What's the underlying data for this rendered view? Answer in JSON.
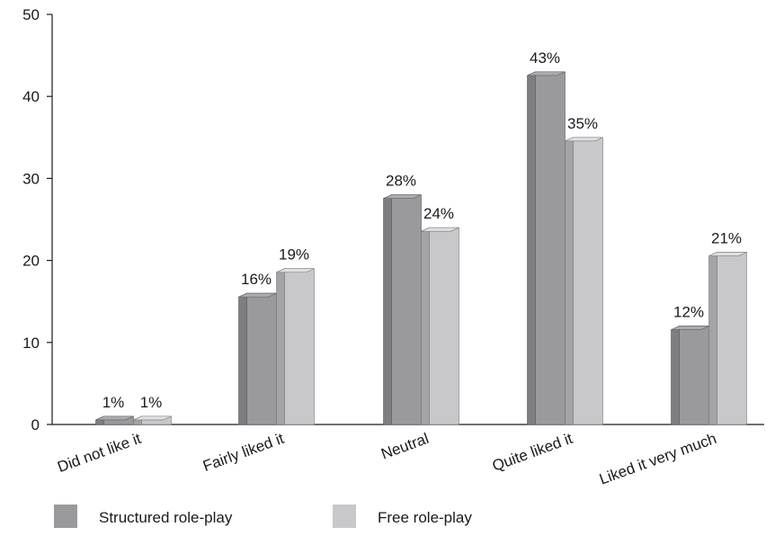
{
  "chart_data": {
    "type": "bar",
    "categories": [
      "Did not like it",
      "Fairly liked it",
      "Neutral",
      "Quite liked it",
      "Liked it very much"
    ],
    "series": [
      {
        "name": "Structured role-play",
        "values": [
          1,
          16,
          28,
          43,
          12
        ],
        "labels": [
          "1%",
          "16%",
          "28%",
          "43%",
          "12%"
        ],
        "color": "#9a9a9c"
      },
      {
        "name": "Free role-play",
        "values": [
          1,
          19,
          24,
          35,
          21
        ],
        "labels": [
          "1%",
          "19%",
          "24%",
          "35%",
          "21%"
        ],
        "color": "#c8c8ca"
      }
    ],
    "yticks": [
      "0",
      "10",
      "20",
      "30",
      "40",
      "50"
    ],
    "ylim": [
      0,
      50
    ],
    "grid": false,
    "legend_position": "bottom-left",
    "bar_style": "3d"
  }
}
